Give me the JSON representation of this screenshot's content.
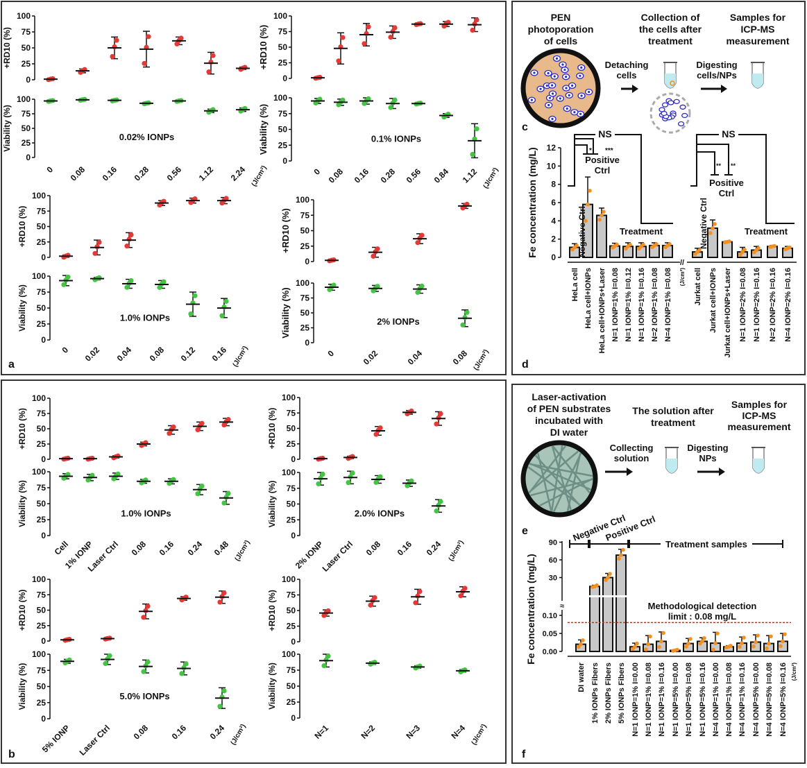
{
  "colors": {
    "rd10": "#e53935",
    "viability": "#43c443",
    "bar": "#c8c8c8",
    "dot": "#f39020",
    "limit": "#e02020",
    "cell_bg": "#e8b98a",
    "cell": "#2a2ac8",
    "fiber_bg": "#a9c4b9",
    "fiber": "#6d8f86",
    "tube": "#bfeaf0"
  },
  "panel_letters": {
    "a": "a",
    "b": "b",
    "c": "c",
    "d": "d",
    "e": "e",
    "f": "f"
  },
  "common": {
    "top_ylabel": "+RD10 (%)",
    "bottom_ylabel": "Viability (%)",
    "unit": "(J/cm²)",
    "yticks": [
      "0",
      "25",
      "50",
      "75",
      "100"
    ]
  },
  "chart_data": [
    {
      "id": "a1",
      "type": "scatter",
      "title": "0.02% IONPs",
      "categories": [
        "0",
        "0.08",
        "0.16",
        "0.28",
        "0.56",
        "1.12",
        "2.24"
      ],
      "rd10": {
        "mean": [
          1,
          14,
          50,
          48,
          61,
          26,
          18
        ],
        "sd": [
          1,
          3,
          17,
          28,
          6,
          17,
          2
        ]
      },
      "viability": {
        "mean": [
          97,
          99,
          98,
          93,
          97,
          80,
          82
        ],
        "sd": [
          1,
          1,
          1,
          1,
          1,
          3,
          3
        ]
      },
      "ylim": [
        0,
        100
      ]
    },
    {
      "id": "a2",
      "type": "scatter",
      "title": "0.1% IONPs",
      "categories": [
        "0",
        "0.08",
        "0.16",
        "0.28",
        "0.56",
        "0.84",
        "1.12"
      ],
      "rd10": {
        "mean": [
          1,
          48,
          70,
          74,
          87,
          87,
          86
        ],
        "sd": [
          1,
          25,
          18,
          10,
          1,
          4,
          11
        ]
      },
      "viability": {
        "mean": [
          95,
          93,
          95,
          91,
          91,
          72,
          32
        ],
        "sd": [
          4,
          5,
          5,
          8,
          1,
          3,
          27
        ]
      },
      "ylim": [
        0,
        100
      ]
    },
    {
      "id": "a3",
      "type": "scatter",
      "title": "1.0% IONPs",
      "categories": [
        "0",
        "0.02",
        "0.04",
        "0.08",
        "0.12",
        "0.16"
      ],
      "rd10": {
        "mean": [
          2,
          16,
          28,
          88,
          92,
          92
        ],
        "sd": [
          2,
          12,
          12,
          4,
          4,
          5
        ]
      },
      "viability": {
        "mean": [
          93,
          96,
          88,
          87,
          56,
          50
        ],
        "sd": [
          8,
          2,
          7,
          6,
          19,
          15
        ]
      },
      "ylim": [
        0,
        100
      ]
    },
    {
      "id": "a4",
      "type": "scatter",
      "title": "2% IONPs",
      "categories": [
        "0",
        "0.02",
        "0.04",
        "0.08"
      ],
      "rd10": {
        "mean": [
          2,
          15,
          37,
          90
        ],
        "sd": [
          1,
          8,
          8,
          4
        ]
      },
      "viability": {
        "mean": [
          93,
          91,
          90,
          41
        ],
        "sd": [
          5,
          5,
          7,
          14
        ]
      },
      "ylim": [
        0,
        100
      ]
    },
    {
      "id": "b1",
      "type": "scatter",
      "title": "1.0% IONPs",
      "categories": [
        "Cell",
        "1% IONP",
        "Laser Ctrl",
        "0.08",
        "0.16",
        "0.24",
        "0.48"
      ],
      "rd10": {
        "mean": [
          1,
          1,
          4,
          25,
          48,
          54,
          61
        ],
        "sd": [
          1,
          1,
          2,
          3,
          7,
          7,
          6
        ]
      },
      "viability": {
        "mean": [
          93,
          91,
          93,
          85,
          85,
          72,
          59
        ],
        "sd": [
          4,
          5,
          5,
          3,
          4,
          8,
          10
        ]
      },
      "ylim": [
        0,
        100
      ]
    },
    {
      "id": "b2",
      "type": "scatter",
      "title": "2.0% IONPs",
      "categories": [
        "2% IONP",
        "Laser Ctrl",
        "0.08",
        "0.16",
        "0.24"
      ],
      "rd10": {
        "mean": [
          1,
          3,
          46,
          76,
          66
        ],
        "sd": [
          1,
          2,
          7,
          3,
          11
        ]
      },
      "viability": {
        "mean": [
          90,
          92,
          89,
          83,
          47
        ],
        "sd": [
          10,
          10,
          6,
          5,
          10
        ]
      },
      "ylim": [
        0,
        100
      ]
    },
    {
      "id": "b3",
      "type": "scatter",
      "title": "5.0% IONPs",
      "categories": [
        "5% IONP",
        "Laser Ctrl",
        "0.08",
        "0.16",
        "0.24"
      ],
      "rd10": {
        "mean": [
          2,
          4,
          48,
          69,
          71
        ],
        "sd": [
          1,
          1,
          12,
          3,
          10
        ]
      },
      "viability": {
        "mean": [
          89,
          92,
          81,
          78,
          32
        ],
        "sd": [
          3,
          8,
          10,
          10,
          16
        ]
      },
      "ylim": [
        0,
        100
      ]
    },
    {
      "id": "b4",
      "type": "scatter",
      "title": "",
      "categories": [
        "N=1",
        "N=2",
        "N=3",
        "N=4"
      ],
      "rd10": {
        "mean": [
          46,
          65,
          72,
          80
        ],
        "sd": [
          5,
          8,
          12,
          8
        ]
      },
      "viability": {
        "mean": [
          90,
          86,
          80,
          74
        ],
        "sd": [
          10,
          2,
          2,
          2
        ]
      },
      "ylim": [
        0,
        100
      ]
    },
    {
      "id": "d",
      "type": "bar",
      "ylabel": "Fe concentration (mg/L)",
      "ylim": [
        0,
        12
      ],
      "yticks": [
        "0",
        "2",
        "4",
        "6",
        "8",
        "10",
        "12"
      ],
      "categories": [
        "HeLa cell",
        "HeLa cell+IONPs",
        "HeLa cell+IONPs+Laser",
        "N=1 IONP=1% I=0.08",
        "N=1 IONP=1% I=0.12",
        "N=1 IONP=1% I=0.16",
        "N=2 IONP=1% I=0.08",
        "N=4 IONP=1% I=0.08",
        "Jurkat cell",
        "Jurkat cell+IONPs",
        "Jurkat cell+IONPs+Laser",
        "N=1 IONP=2% I=0.08",
        "N=1 IONP=2% I=0.16",
        "N=2 IONP=2% I=0.16",
        "N=4 IONP=2% I=0.16"
      ],
      "values": [
        1.1,
        5.8,
        4.6,
        1.25,
        1.2,
        1.2,
        1.3,
        1.3,
        0.6,
        3.2,
        1.7,
        0.6,
        0.8,
        1.2,
        1.0
      ],
      "sd": [
        0.4,
        3.0,
        0.8,
        0.3,
        0.4,
        0.4,
        0.3,
        0.3,
        0.4,
        0.9,
        0.1,
        0.5,
        0.4,
        0.1,
        0.2
      ],
      "annotations": {
        "ns": "NS",
        "sig1": "*",
        "sig2": "***",
        "sig3": "**",
        "sig4": "**",
        "negative": "Negative Ctrl",
        "positive": "Positive Ctrl",
        "treatment": "Treatment",
        "unit": "(J/cm²)",
        "break": "//"
      }
    },
    {
      "id": "f",
      "type": "bar",
      "ylabel": "Fe concentration (mg/L)",
      "yticks_low": [
        "0.00",
        "0.05",
        "0.10"
      ],
      "yticks_high": [
        "30",
        "60",
        "90"
      ],
      "break": "≈",
      "categories": [
        "DI water",
        "1% IONPs Fibers",
        "2% IONPs Fibers",
        "5% IONPs Fibers",
        "N=1 IONP=1% I=0.00",
        "N=1 IONP=1% I=0.08",
        "N=1 IONP=1% I=0.16",
        "N=1 IONP=5% I=0.00",
        "N=1 IONP=5% I=0.08",
        "N=1 IONP=5% I=0.16",
        "N=4 IONP=1% I=0.00",
        "N=4 IONP=1% I=0.08",
        "N=4 IONP=1% I=0.16",
        "N=4 IONP=5% I=0.00",
        "N=4 IONP=5% I=0.08",
        "N=4 IONP=5% I=0.16"
      ],
      "values": [
        0.02,
        15,
        30,
        68,
        0.013,
        0.02,
        0.028,
        0.003,
        0.022,
        0.028,
        0.023,
        0.013,
        0.023,
        0.026,
        0.022,
        0.028
      ],
      "sd": [
        0.012,
        2,
        7,
        10,
        0.01,
        0.024,
        0.026,
        0.002,
        0.014,
        0.01,
        0.03,
        0.003,
        0.017,
        0.02,
        0.022,
        0.022
      ],
      "limit": 0.08,
      "annotations": {
        "negative": "Negative Ctrl",
        "positive": "Positive Ctrl",
        "treatment": "Treatment samples",
        "limit_line1": "Methodological detection",
        "limit_line2": "limit : 0.08 mg/L",
        "unit": "(J/cm²)"
      }
    }
  ],
  "diagram_c": {
    "step1": [
      "PEN",
      "photoporation",
      "of cells"
    ],
    "step2": [
      "Collection of",
      "the cells after",
      "treatment"
    ],
    "step3": [
      "Samples for",
      "ICP-MS",
      "measurement"
    ],
    "arrow1": [
      "Detaching",
      "cells"
    ],
    "arrow2": [
      "Digesting",
      "cells/NPs"
    ]
  },
  "diagram_e": {
    "step1": [
      "Laser-activation",
      "of PEN substrates",
      "incubated with",
      "DI water"
    ],
    "step2": [
      "The solution after",
      "treatment"
    ],
    "step3": [
      "Samples for",
      "ICP-MS",
      "measurement"
    ],
    "arrow1": [
      "Collecting",
      "solution"
    ],
    "arrow2": [
      "Digesting",
      "NPs"
    ]
  }
}
